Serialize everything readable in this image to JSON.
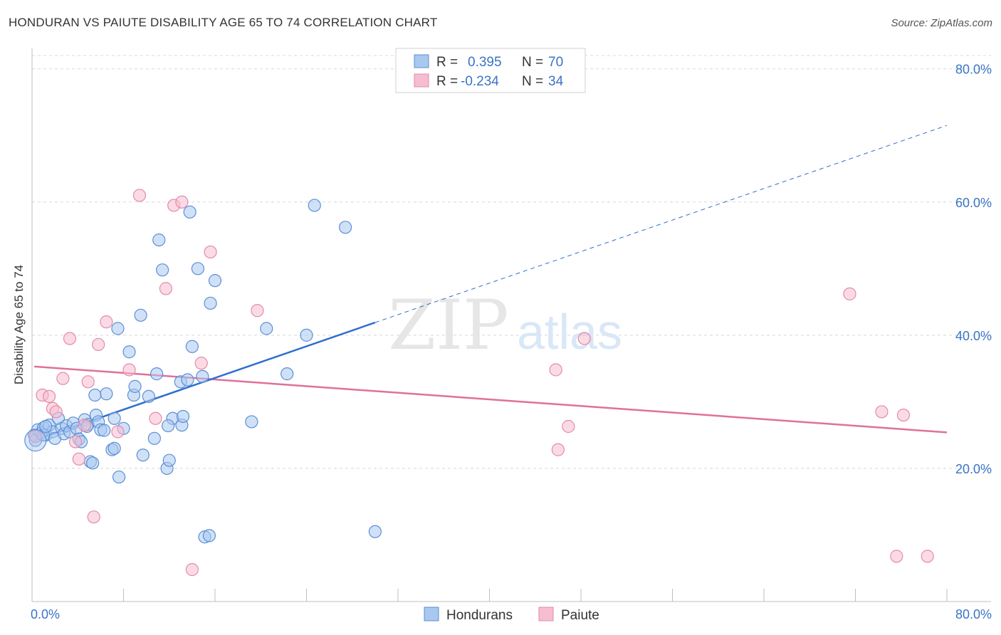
{
  "title": "HONDURAN VS PAIUTE DISABILITY AGE 65 TO 74 CORRELATION CHART",
  "source": "Source: ZipAtlas.com",
  "watermark": {
    "zip": "ZIP",
    "atlas": "atlas"
  },
  "legend_box": {
    "rows": [
      {
        "r_label": "R =",
        "r_value": "0.395",
        "n_label": "N =",
        "n_value": "70"
      },
      {
        "r_label": "R =",
        "r_value": "-0.234",
        "n_label": "N =",
        "n_value": "34"
      }
    ]
  },
  "colors": {
    "blue_fill": "#a9c8f0",
    "blue_stroke": "#5b8fd6",
    "blue_line": "#2f6fce",
    "pink_fill": "#f6bdd0",
    "pink_stroke": "#e58aa8",
    "pink_line": "#e0709a",
    "axis_label": "#3a74c5",
    "grid": "#d8d8d8"
  },
  "chart_data": {
    "type": "scatter",
    "title": "HONDURAN VS PAIUTE DISABILITY AGE 65 TO 74 CORRELATION CHART",
    "xlabel": "",
    "ylabel": "Disability Age 65 to 74",
    "xlim": [
      0,
      80
    ],
    "ylim": [
      0,
      82
    ],
    "x_tick_labels": [
      "0.0%",
      "80.0%"
    ],
    "y_ticks": [
      {
        "value": 20,
        "label": "20.0%"
      },
      {
        "value": 40,
        "label": "40.0%"
      },
      {
        "value": 60,
        "label": "60.0%"
      },
      {
        "value": 80,
        "label": "80.0%"
      }
    ],
    "grid": true,
    "legend_position": "bottom",
    "series": [
      {
        "name": "Hondurans",
        "color": "#a9c8f0",
        "points": [
          [
            0.2,
            25
          ],
          [
            0.3,
            24.2
          ],
          [
            0.5,
            25.8
          ],
          [
            0.8,
            25.3
          ],
          [
            1.0,
            26.1
          ],
          [
            1.2,
            25.0
          ],
          [
            1.5,
            26.5
          ],
          [
            1.8,
            25.5
          ],
          [
            2.0,
            24.5
          ],
          [
            2.3,
            27.5
          ],
          [
            2.6,
            26.0
          ],
          [
            2.8,
            25.2
          ],
          [
            3.0,
            26.4
          ],
          [
            3.3,
            25.5
          ],
          [
            3.6,
            26.8
          ],
          [
            3.9,
            26.0
          ],
          [
            4.1,
            24.4
          ],
          [
            4.3,
            24.0
          ],
          [
            4.6,
            27.3
          ],
          [
            4.9,
            26.6
          ],
          [
            5.1,
            21.0
          ],
          [
            5.3,
            20.8
          ],
          [
            5.6,
            28.0
          ],
          [
            5.8,
            27.0
          ],
          [
            6.0,
            25.8
          ],
          [
            6.3,
            25.7
          ],
          [
            6.5,
            31.2
          ],
          [
            5.5,
            31.0
          ],
          [
            7.0,
            22.8
          ],
          [
            7.2,
            27.5
          ],
          [
            7.5,
            41.0
          ],
          [
            7.6,
            18.7
          ],
          [
            8.0,
            26.0
          ],
          [
            8.5,
            37.5
          ],
          [
            8.9,
            31.0
          ],
          [
            9.0,
            32.3
          ],
          [
            9.5,
            43.0
          ],
          [
            9.7,
            22.0
          ],
          [
            10.2,
            30.8
          ],
          [
            10.7,
            24.5
          ],
          [
            10.9,
            34.2
          ],
          [
            11.1,
            54.3
          ],
          [
            11.4,
            49.8
          ],
          [
            11.8,
            20.0
          ],
          [
            12.0,
            21.2
          ],
          [
            12.3,
            27.5
          ],
          [
            13.0,
            33.0
          ],
          [
            13.1,
            26.5
          ],
          [
            13.2,
            27.8
          ],
          [
            13.6,
            33.3
          ],
          [
            13.8,
            58.5
          ],
          [
            14.0,
            38.3
          ],
          [
            14.5,
            50.0
          ],
          [
            14.9,
            33.8
          ],
          [
            15.6,
            44.8
          ],
          [
            16.0,
            48.2
          ],
          [
            15.1,
            9.7
          ],
          [
            15.5,
            9.9
          ],
          [
            19.2,
            27.0
          ],
          [
            20.5,
            41.0
          ],
          [
            22.3,
            34.2
          ],
          [
            24.0,
            40.0
          ],
          [
            24.7,
            59.5
          ],
          [
            27.4,
            56.2
          ],
          [
            30.0,
            10.5
          ],
          [
            1.0,
            25.0
          ],
          [
            1.2,
            26.3
          ],
          [
            4.8,
            26.3
          ],
          [
            11.9,
            26.4
          ],
          [
            7.2,
            23.0
          ]
        ],
        "regression": {
          "x": [
            0.2,
            30.0
          ],
          "y": [
            24.2,
            41.9
          ],
          "dashed_extension_to": [
            80.0,
            71.5
          ]
        }
      },
      {
        "name": "Paiute",
        "color": "#f6bdd0",
        "points": [
          [
            0.3,
            24.8
          ],
          [
            0.9,
            31.0
          ],
          [
            1.5,
            30.8
          ],
          [
            1.8,
            29.0
          ],
          [
            2.1,
            28.5
          ],
          [
            2.7,
            33.5
          ],
          [
            3.3,
            39.5
          ],
          [
            3.8,
            24.0
          ],
          [
            4.1,
            21.4
          ],
          [
            4.9,
            33.0
          ],
          [
            5.4,
            12.7
          ],
          [
            5.8,
            38.6
          ],
          [
            6.5,
            42.0
          ],
          [
            7.5,
            25.5
          ],
          [
            8.5,
            34.8
          ],
          [
            9.4,
            61.0
          ],
          [
            10.8,
            27.5
          ],
          [
            11.7,
            47.0
          ],
          [
            12.4,
            59.5
          ],
          [
            13.1,
            60.0
          ],
          [
            14.0,
            4.8
          ],
          [
            14.8,
            35.8
          ],
          [
            15.6,
            52.5
          ],
          [
            19.7,
            43.7
          ],
          [
            45.8,
            34.8
          ],
          [
            46.0,
            22.8
          ],
          [
            46.9,
            26.3
          ],
          [
            48.3,
            39.5
          ],
          [
            71.5,
            46.2
          ],
          [
            74.3,
            28.5
          ],
          [
            75.6,
            6.8
          ],
          [
            76.2,
            28.0
          ],
          [
            78.3,
            6.8
          ],
          [
            4.6,
            26.5
          ]
        ],
        "regression": {
          "x": [
            0.2,
            80.0
          ],
          "y": [
            35.3,
            25.4
          ]
        }
      }
    ]
  },
  "bottom_legend": [
    {
      "label": "Hondurans"
    },
    {
      "label": "Paiute"
    }
  ]
}
